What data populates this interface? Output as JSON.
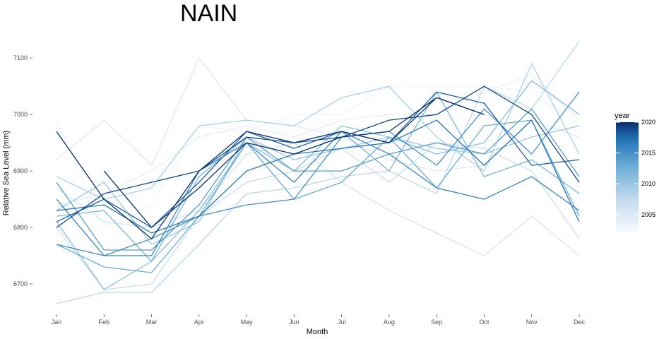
{
  "chart_data": {
    "type": "line",
    "title": "NAIN",
    "xlabel": "Month",
    "ylabel": "Relative Sea Level (mm)",
    "categories": [
      "Jan",
      "Feb",
      "Mar",
      "Apr",
      "May",
      "Jun",
      "Jul",
      "Aug",
      "Sep",
      "Oct",
      "Nov",
      "Dec"
    ],
    "y_ticks": [
      6700,
      6800,
      6900,
      7000,
      7100
    ],
    "ylim": [
      6660,
      7135
    ],
    "grid": false,
    "legend": {
      "title": "year",
      "position": "right",
      "type": "colorbar",
      "range": [
        2002,
        2020
      ],
      "ticks": [
        2005,
        2010,
        2015,
        2020
      ],
      "low_color": "#f7fbff",
      "high_color": "#08306b"
    },
    "series": [
      {
        "year": 2002,
        "values": [
          6900,
          6840,
          6870,
          6900,
          6980,
          6990,
          6990,
          7070,
          7040,
          7020,
          7040,
          6970
        ]
      },
      {
        "year": 2003,
        "values": [
          6990,
          6800,
          6840,
          6980,
          6970,
          7000,
          7000,
          7050,
          7050,
          7050,
          7040,
          6980
        ]
      },
      {
        "year": 2004,
        "values": [
          6840,
          6860,
          6900,
          6960,
          6980,
          6960,
          6990,
          7000,
          7000,
          7040,
          7070,
          6990
        ]
      },
      {
        "year": 2005,
        "values": [
          6920,
          6990,
          6910,
          7100,
          6990,
          6980,
          6960,
          6920,
          6900,
          6910,
          6990,
          6960
        ]
      },
      {
        "year": 2006,
        "values": [
          6870,
          6810,
          6800,
          6830,
          6930,
          6950,
          6880,
          6830,
          6790,
          6750,
          6820,
          6750
        ]
      },
      {
        "year": 2007,
        "values": [
          6800,
          6690,
          6700,
          6820,
          6880,
          6900,
          6940,
          6880,
          6950,
          6940,
          6900,
          6780
        ]
      },
      {
        "year": 2008,
        "values": [
          6665,
          6685,
          6685,
          6770,
          6860,
          6870,
          6890,
          6900,
          6860,
          7050,
          7010,
          7130
        ]
      },
      {
        "year": 2009,
        "values": [
          6890,
          6850,
          6870,
          6980,
          6990,
          6980,
          7030,
          7050,
          6960,
          6900,
          7090,
          6930
        ]
      },
      {
        "year": 2010,
        "values": [
          6830,
          6880,
          6770,
          6810,
          6960,
          6920,
          6940,
          6960,
          6940,
          6930,
          6960,
          6980
        ]
      },
      {
        "year": 2011,
        "values": [
          6810,
          6690,
          6740,
          6830,
          6950,
          6900,
          6980,
          6960,
          6930,
          6950,
          7060,
          7000
        ]
      },
      {
        "year": 2012,
        "values": [
          6820,
          6830,
          6740,
          6890,
          6960,
          6950,
          6970,
          6900,
          7040,
          6890,
          6920,
          6860
        ]
      },
      {
        "year": 2013,
        "values": [
          6770,
          6730,
          6720,
          6820,
          6950,
          6850,
          6880,
          6960,
          6870,
          6980,
          6990,
          6820
        ]
      },
      {
        "year": 2014,
        "values": [
          6880,
          6760,
          6760,
          6840,
          6960,
          6900,
          6900,
          6930,
          6950,
          6930,
          7010,
          6890
        ]
      },
      {
        "year": 2015,
        "values": [
          6770,
          6750,
          6780,
          6820,
          6840,
          6850,
          6960,
          6970,
          6910,
          7010,
          6930,
          7040
        ]
      },
      {
        "year": 2016,
        "values": [
          6850,
          6750,
          6750,
          6900,
          6950,
          6880,
          6970,
          6930,
          6870,
          6850,
          6890,
          6830
        ]
      },
      {
        "year": 2017,
        "values": [
          6830,
          6840,
          6790,
          6820,
          6900,
          6930,
          6940,
          6950,
          6990,
          6910,
          6990,
          6810
        ]
      },
      {
        "year": 2018,
        "values": [
          6810,
          6850,
          6800,
          6880,
          6970,
          6940,
          6970,
          6950,
          7040,
          7020,
          6910,
          6920
        ]
      },
      {
        "year": 2019,
        "values": [
          6800,
          6860,
          6880,
          6900,
          6960,
          6950,
          6960,
          6990,
          7000,
          7050,
          7000,
          6880
        ]
      },
      {
        "year": 2020,
        "values": [
          6970,
          6850,
          6780,
          6900,
          6970,
          6950,
          6970,
          6950,
          7030,
          7000,
          null,
          null
        ]
      },
      {
        "year": 2020,
        "values": [
          null,
          6900,
          6800,
          6870,
          6950,
          6930,
          6960,
          6970,
          7030,
          7000,
          null,
          null
        ]
      }
    ]
  }
}
